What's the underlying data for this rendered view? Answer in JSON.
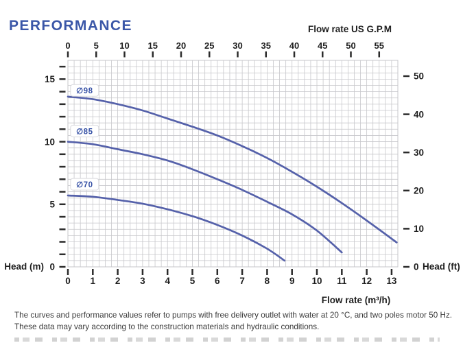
{
  "page": {
    "title": "PERFORMANCE",
    "footnote_line1": "The curves and performance values refer to pumps with free delivery outlet with water at 20 °C, and two poles motor 50 Hz.",
    "footnote_line2": "These data may vary according to the construction materials and hydraulic conditions."
  },
  "colors": {
    "title_blue": "#3b57a8",
    "curve_blue": "#5561aa",
    "series_label_blue": "#3550a5",
    "grid_gray": "#c7c7cb",
    "tick_black": "#2b2b2b",
    "text_black": "#1e1e1e"
  },
  "chart_data": {
    "type": "line",
    "title": "PERFORMANCE",
    "top_axis": {
      "label": "Flow rate US  G.P.M",
      "ticks": [
        0,
        5,
        10,
        15,
        20,
        25,
        30,
        35,
        40,
        45,
        50,
        55
      ],
      "gpm_per_m3h": 4.4
    },
    "bottom_axis": {
      "label": "Flow rate  (m³/h)",
      "ticks": [
        0,
        1,
        2,
        3,
        4,
        5,
        6,
        7,
        8,
        9,
        10,
        11,
        12,
        13
      ],
      "range": [
        0,
        13.25
      ]
    },
    "left_axis": {
      "label": "Head (m)",
      "labeled_ticks": [
        0,
        5,
        10,
        15
      ],
      "minor_tick_step": 1,
      "max_tick": 16,
      "range": [
        0,
        16.5
      ]
    },
    "right_axis": {
      "label": "Head (ft)",
      "ticks": [
        0,
        10,
        20,
        30,
        40,
        50
      ],
      "meters_per_foot": 0.3048
    },
    "grid": {
      "x_minor_step": 0.25,
      "y_minor_step": 0.5,
      "on": true
    },
    "legend": "curve labels inline on chart",
    "series": [
      {
        "label": "∅98",
        "name": "impeller-98",
        "points": [
          [
            0,
            13.6
          ],
          [
            1,
            13.4
          ],
          [
            2,
            13.0
          ],
          [
            3,
            12.5
          ],
          [
            4,
            11.85
          ],
          [
            5,
            11.2
          ],
          [
            6,
            10.5
          ],
          [
            7,
            9.65
          ],
          [
            8,
            8.7
          ],
          [
            9,
            7.6
          ],
          [
            10,
            6.4
          ],
          [
            11,
            5.1
          ],
          [
            12,
            3.7
          ],
          [
            13,
            2.25
          ],
          [
            13.2,
            1.95
          ]
        ],
        "label_at": [
          0.67,
          14.1
        ]
      },
      {
        "label": "∅85",
        "name": "impeller-85",
        "points": [
          [
            0,
            10.0
          ],
          [
            1,
            9.8
          ],
          [
            2,
            9.4
          ],
          [
            3,
            9.0
          ],
          [
            4,
            8.5
          ],
          [
            5,
            7.8
          ],
          [
            6,
            7.0
          ],
          [
            7,
            6.15
          ],
          [
            8,
            5.2
          ],
          [
            9,
            4.2
          ],
          [
            10,
            2.9
          ],
          [
            11,
            1.15
          ]
        ],
        "label_at": [
          0.67,
          10.85
        ]
      },
      {
        "label": "∅70",
        "name": "impeller-70",
        "points": [
          [
            0,
            5.7
          ],
          [
            1,
            5.6
          ],
          [
            2,
            5.35
          ],
          [
            3,
            5.05
          ],
          [
            4,
            4.6
          ],
          [
            5,
            4.05
          ],
          [
            6,
            3.35
          ],
          [
            7,
            2.5
          ],
          [
            8,
            1.45
          ],
          [
            8.7,
            0.5
          ]
        ],
        "label_at": [
          0.67,
          6.6
        ]
      }
    ]
  }
}
